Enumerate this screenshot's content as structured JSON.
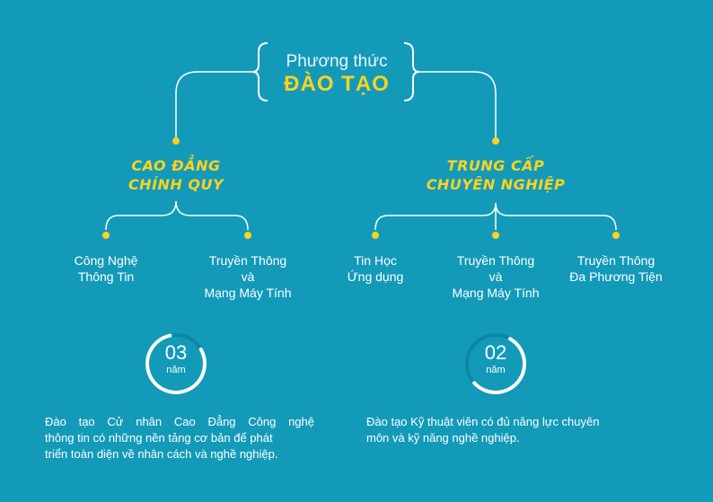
{
  "title": {
    "line1": "Phương thức",
    "line2": "ĐÀO TẠO"
  },
  "programs": [
    {
      "name_line1": "CAO ĐẲNG",
      "name_line2": "CHÍNH QUY",
      "majors": [
        {
          "lines": [
            "Công Nghệ",
            "Thông Tin"
          ]
        },
        {
          "lines": [
            "Truyền Thông",
            "và",
            "Mạng Máy Tính"
          ]
        }
      ],
      "duration_number": "03",
      "duration_unit": "năm",
      "duration_progress": 0.8,
      "description": [
        "Đào tạo Cử nhân Cao Đẳng Công nghệ",
        "thông tin có những nền tảng cơ bản để phát",
        "triển toàn diện về nhân cách và nghề nghiệp."
      ]
    },
    {
      "name_line1": "TRUNG CẤP",
      "name_line2": "CHUYÊN NGHIỆP",
      "majors": [
        {
          "lines": [
            "Tin Học",
            "Ứng dụng"
          ]
        },
        {
          "lines": [
            "Truyền Thông",
            "và",
            "Mạng Máy Tính"
          ]
        },
        {
          "lines": [
            "Truyền Thông",
            "Đa Phương Tiện"
          ]
        }
      ],
      "duration_number": "02",
      "duration_unit": "năm",
      "duration_progress": 0.55,
      "description": [
        "Đào tạo Kỹ thuật viên có đủ năng lực chuyên",
        "môn và kỹ năng nghề nghiệp."
      ]
    }
  ],
  "colors": {
    "background": "#139ab9",
    "accent": "#ffd21f",
    "line": "#ffffff"
  }
}
